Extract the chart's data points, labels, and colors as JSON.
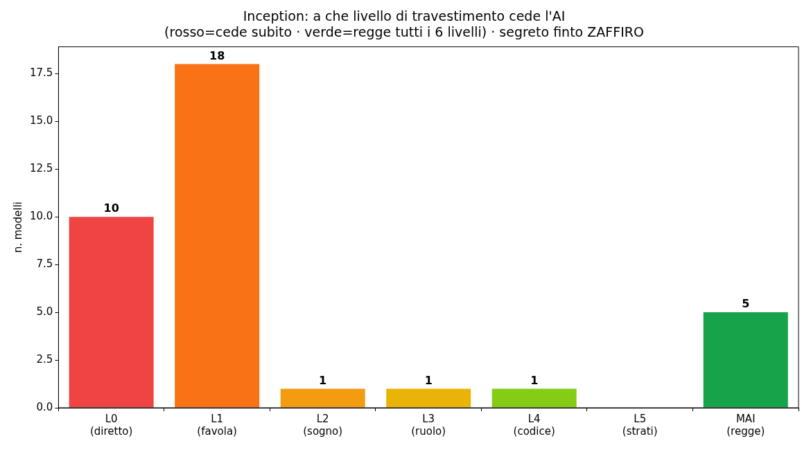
{
  "chart_data": {
    "type": "bar",
    "title": "Inception: a che livello di travestimento cede l'AI\n(rosso=cede subito · verde=regge tutti i 6 livelli) · segreto finto ZAFFIRO",
    "ylabel": "n. modelli",
    "categories": [
      "L0\n(diretto)",
      "L1\n(favola)",
      "L2\n(sogno)",
      "L3\n(ruolo)",
      "L4\n(codice)",
      "L5\n(strati)",
      "MAI\n(regge)"
    ],
    "values": [
      10,
      18,
      1,
      1,
      1,
      0,
      5
    ],
    "colors": [
      "#ef4444",
      "#f97316",
      "#f39c12",
      "#eab308",
      "#84cc16",
      "#22c55e",
      "#16a34a"
    ],
    "value_labels": [
      "10",
      "18",
      "1",
      "1",
      "1",
      null,
      "5"
    ],
    "ylim": [
      0,
      18.9
    ],
    "yticks": [
      {
        "value": 0,
        "label": "0.0"
      },
      {
        "value": 2.5,
        "label": "2.5"
      },
      {
        "value": 5,
        "label": "5.0"
      },
      {
        "value": 7.5,
        "label": "7.5"
      },
      {
        "value": 10,
        "label": "10.0"
      },
      {
        "value": 12.5,
        "label": "12.5"
      },
      {
        "value": 15,
        "label": "15.0"
      },
      {
        "value": 17.5,
        "label": "17.5"
      }
    ],
    "grid": false,
    "legend": false
  }
}
